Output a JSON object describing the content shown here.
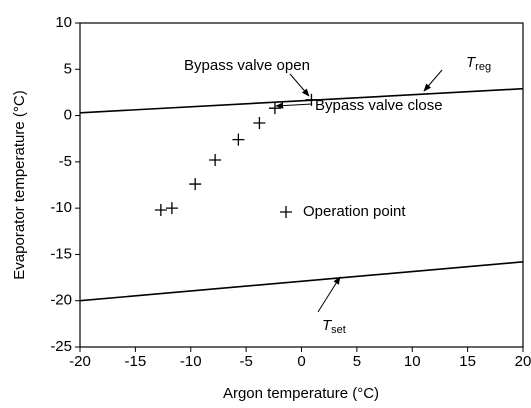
{
  "chart_data": {
    "type": "scatter",
    "xlabel": "Argon  temperature (°C)",
    "ylabel": "Evaporator temperature (°C)",
    "xlim": [
      -20,
      20
    ],
    "ylim": [
      -25,
      10
    ],
    "xticks": [
      -20,
      -15,
      -10,
      -5,
      0,
      5,
      10,
      15,
      20
    ],
    "yticks": [
      -25,
      -20,
      -15,
      -10,
      -5,
      0,
      5,
      10
    ],
    "series": [
      {
        "name": "Operation point",
        "color": "#000000",
        "x": [
          -12.7,
          -11.7,
          -9.6,
          -7.8,
          -5.7,
          -3.8,
          -2.4,
          0.9
        ],
        "values": [
          -10.2,
          -10.0,
          -7.4,
          -4.8,
          -2.6,
          -0.8,
          0.8,
          1.7
        ]
      }
    ],
    "lines": [
      {
        "label": "T",
        "label_sub": "reg",
        "color": "#000000",
        "x": [
          -20,
          20
        ],
        "values": [
          0.3,
          2.9
        ]
      },
      {
        "label": "T",
        "label_sub": "set",
        "color": "#000000",
        "x": [
          -20,
          20
        ],
        "values": [
          -20,
          -15.8
        ]
      }
    ],
    "annotations": [
      "Bypass valve open",
      "Bypass valve close"
    ]
  }
}
